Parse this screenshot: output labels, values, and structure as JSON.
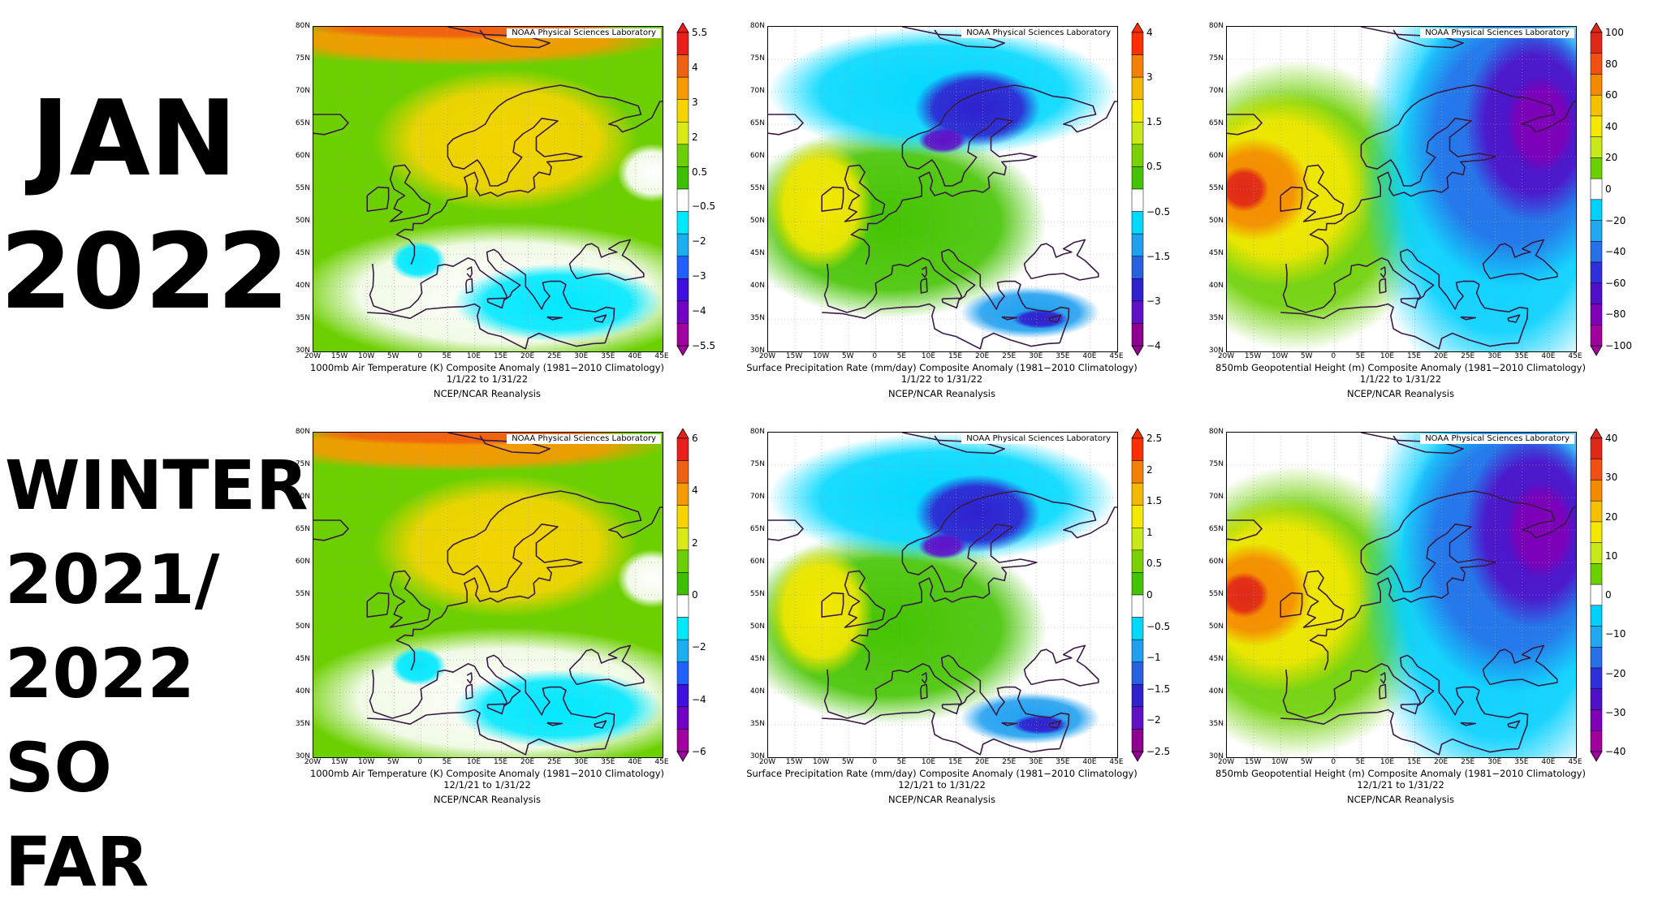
{
  "row_labels": {
    "jan": [
      "JAN",
      "2022"
    ],
    "winter": [
      "WINTER",
      "2021/",
      "2022",
      "SO FAR"
    ]
  },
  "credit": "NOAA Physical Sciences Laboratory",
  "source": "NCEP/NCAR Reanalysis",
  "lat_ticks": [
    "80N",
    "75N",
    "70N",
    "65N",
    "60N",
    "55N",
    "50N",
    "45N",
    "40N",
    "35N",
    "30N"
  ],
  "lon_ticks": [
    "20W",
    "15W",
    "10W",
    "5W",
    "0",
    "5E",
    "10E",
    "15E",
    "20E",
    "25E",
    "30E",
    "35E",
    "40E",
    "45E"
  ],
  "panels": [
    {
      "id": "jan-temperature",
      "variable": "1000mb Air Temperature (K) Composite Anomaly (1981−2010 Climatology)",
      "dates": "1/1/22  to 1/31/22",
      "palette": "temperature",
      "colorbar_labels": [
        "5.5",
        "4",
        "3",
        "2",
        "0.5",
        "−0.5",
        "−2",
        "−3",
        "−4",
        "−5.5"
      ]
    },
    {
      "id": "jan-precipitation",
      "variable": "Surface Precipitation Rate (mm/day) Composite Anomaly (1981−2010 Climatology)",
      "dates": "1/1/22  to 1/31/22",
      "palette": "precipitation",
      "colorbar_labels": [
        "4",
        "3",
        "1.5",
        "0.5",
        "−0.5",
        "−1.5",
        "−3",
        "−4"
      ]
    },
    {
      "id": "jan-geopotential",
      "variable": "850mb Geopotential Height (m) Composite Anomaly (1981−2010 Climatology)",
      "dates": "1/1/22  to 1/31/22",
      "palette": "geopotential",
      "colorbar_labels": [
        "100",
        "80",
        "60",
        "40",
        "20",
        "0",
        "−20",
        "−40",
        "−60",
        "−80",
        "−100"
      ]
    },
    {
      "id": "winter-temperature",
      "variable": "1000mb Air Temperature (K) Composite Anomaly (1981−2010 Climatology)",
      "dates": "12/1/21  to 1/31/22",
      "palette": "temperature",
      "colorbar_labels": [
        "6",
        "4",
        "2",
        "0",
        "−2",
        "−4",
        "−6"
      ]
    },
    {
      "id": "winter-precipitation",
      "variable": "Surface Precipitation Rate (mm/day) Composite Anomaly (1981−2010 Climatology)",
      "dates": "12/1/21  to 1/31/22",
      "palette": "precipitation",
      "colorbar_labels": [
        "2.5",
        "2",
        "1.5",
        "1",
        "0.5",
        "0",
        "−0.5",
        "−1",
        "−1.5",
        "−2",
        "−2.5"
      ]
    },
    {
      "id": "winter-geopotential",
      "variable": "850mb Geopotential Height (m) Composite Anomaly (1981−2010 Climatology)",
      "dates": "12/1/21  to 1/31/22",
      "palette": "geopotential",
      "colorbar_labels": [
        "40",
        "30",
        "20",
        "10",
        "0",
        "−10",
        "−20",
        "−30",
        "−40"
      ]
    }
  ],
  "colors": {
    "temperature_scale": [
      "#e8201c",
      "#f06010",
      "#f59a00",
      "#f5d400",
      "#d8e818",
      "#6cd000",
      "#3cc000",
      "#ffffff",
      "#00e8ff",
      "#18b0f0",
      "#2060ff",
      "#4010e0",
      "#7000c8",
      "#a000a0"
    ],
    "precipitation_scale": [
      "#ff3000",
      "#f58000",
      "#f5b800",
      "#f5e800",
      "#c8e818",
      "#7ad000",
      "#44c400",
      "#ffffff",
      "#00d8ff",
      "#20a0f0",
      "#2860e0",
      "#3020d0",
      "#6010c8",
      "#900090"
    ],
    "geopotential_scale": [
      "#e02818",
      "#f05010",
      "#f58a00",
      "#f5c000",
      "#f5e800",
      "#c8e818",
      "#6cd000",
      "#ffffff",
      "#00d0ff",
      "#20a8f0",
      "#2870e8",
      "#3030d8",
      "#5010c8",
      "#8000b8",
      "#a000a0"
    ],
    "coastline": "#3a1a45",
    "grid": "#9a9a9a"
  }
}
